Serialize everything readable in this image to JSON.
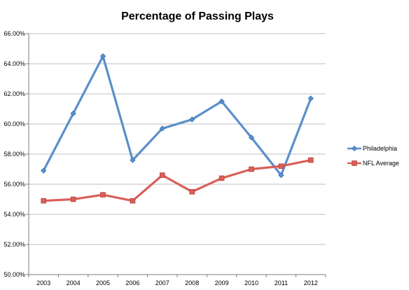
{
  "chart_data": {
    "type": "line",
    "title": "Percentage of Passing Plays",
    "xlabel": "",
    "ylabel": "",
    "categories": [
      "2003",
      "2004",
      "2005",
      "2006",
      "2007",
      "2008",
      "2009",
      "2010",
      "2011",
      "2012"
    ],
    "ylim": [
      50,
      66
    ],
    "y_ticks": [
      50,
      52,
      54,
      56,
      58,
      60,
      62,
      64,
      66
    ],
    "y_tick_labels": [
      "50.00%",
      "52.00%",
      "54.00%",
      "56.00%",
      "58.00%",
      "60.00%",
      "62.00%",
      "64.00%",
      "66.00%"
    ],
    "grid": "horizontal",
    "legend_position": "right",
    "series": [
      {
        "name": "Philadelphia",
        "color": "#5b8fca",
        "marker": "diamond",
        "values": [
          56.9,
          60.7,
          64.5,
          57.6,
          59.7,
          60.3,
          61.5,
          59.1,
          56.6,
          61.7
        ]
      },
      {
        "name": "NFL Average",
        "color": "#d9605a",
        "marker": "square",
        "values": [
          54.9,
          55.0,
          55.3,
          54.9,
          56.6,
          55.5,
          56.4,
          57.0,
          57.2,
          57.6
        ]
      }
    ]
  }
}
